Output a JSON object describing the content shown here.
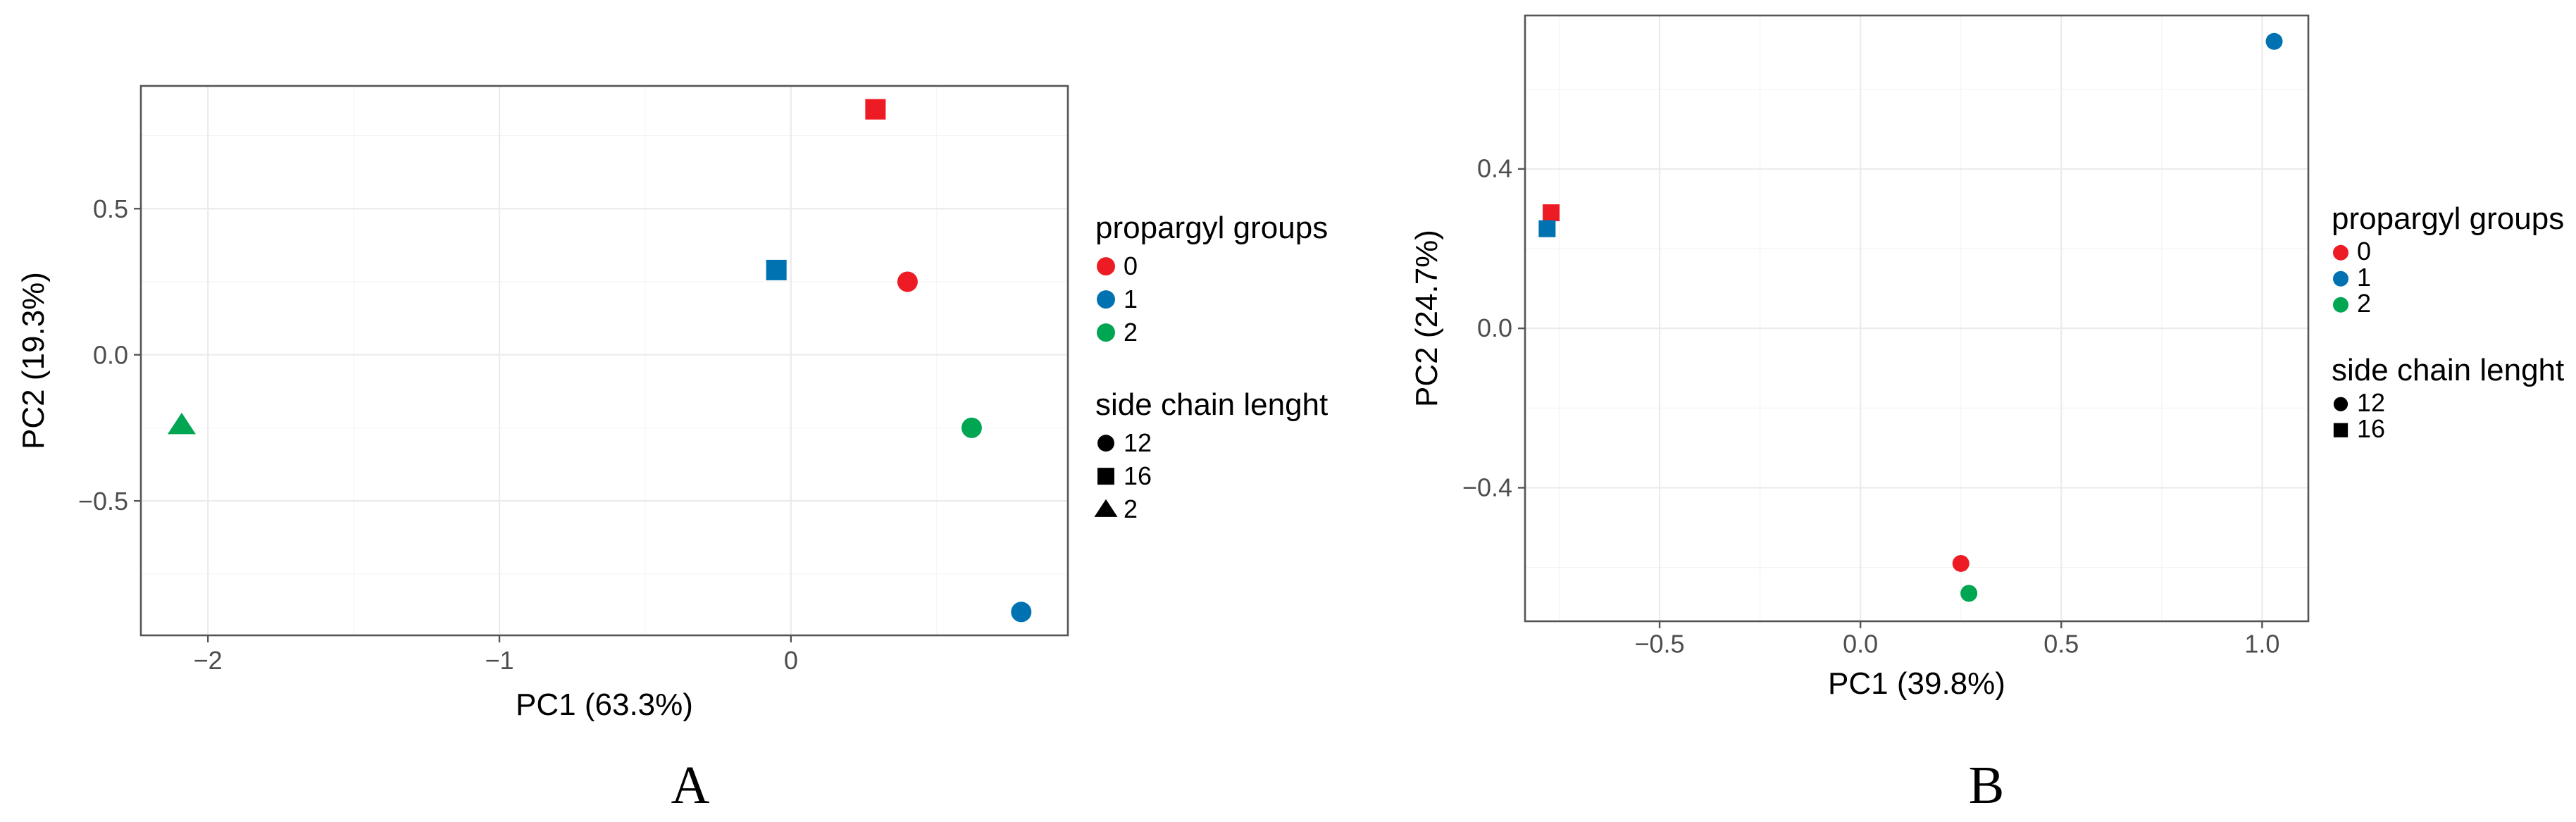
{
  "chart_data": [
    {
      "panel": "A",
      "type": "scatter",
      "title": "",
      "xlabel": "PC1 (63.3%)",
      "ylabel": "PC2 (19.3%)",
      "xlim": [
        -2.23,
        0.95
      ],
      "ylim": [
        -0.96,
        0.92
      ],
      "xticks": [
        -2,
        -1,
        0
      ],
      "yticks": [
        -0.5,
        0.0,
        0.5
      ],
      "xtick_labels": [
        "−2",
        "−1",
        "0"
      ],
      "ytick_labels": [
        "−0.5",
        "0.0",
        "0.5"
      ],
      "grid": true,
      "legend_position": "right",
      "legend": {
        "color_title": "propargyl groups",
        "color_entries": [
          {
            "label": "0",
            "color": "#ed1c24"
          },
          {
            "label": "1",
            "color": "#0072b2"
          },
          {
            "label": "2",
            "color": "#00a651"
          }
        ],
        "shape_title": "side chain lenght",
        "shape_entries": [
          {
            "label": "12",
            "shape": "circle"
          },
          {
            "label": "16",
            "shape": "square"
          },
          {
            "label": "2",
            "shape": "triangle"
          }
        ]
      },
      "points": [
        {
          "x": 0.29,
          "y": 0.84,
          "group": "0",
          "chain": "16"
        },
        {
          "x": -0.05,
          "y": 0.29,
          "group": "1",
          "chain": "16"
        },
        {
          "x": 0.4,
          "y": 0.25,
          "group": "0",
          "chain": "12"
        },
        {
          "x": 0.62,
          "y": -0.25,
          "group": "2",
          "chain": "12"
        },
        {
          "x": -2.09,
          "y": -0.24,
          "group": "2",
          "chain": "2"
        },
        {
          "x": 0.79,
          "y": -0.88,
          "group": "1",
          "chain": "12"
        }
      ]
    },
    {
      "panel": "B",
      "type": "scatter",
      "title": "",
      "xlabel": "PC1 (39.8%)",
      "ylabel": "PC2 (24.7%)",
      "xlim": [
        -0.835,
        1.115
      ],
      "ylim": [
        -0.735,
        0.785
      ],
      "xticks": [
        -0.5,
        0.0,
        0.5,
        1.0
      ],
      "yticks": [
        -0.4,
        0.0,
        0.4
      ],
      "xtick_labels": [
        "−0.5",
        "0.0",
        "0.5",
        "1.0"
      ],
      "ytick_labels": [
        "−0.4",
        "0.0",
        "0.4"
      ],
      "grid": true,
      "legend_position": "right",
      "legend": {
        "color_title": "propargyl groups",
        "color_entries": [
          {
            "label": "0",
            "color": "#ed1c24"
          },
          {
            "label": "1",
            "color": "#0072b2"
          },
          {
            "label": "2",
            "color": "#00a651"
          }
        ],
        "shape_title": "side chain lenght",
        "shape_entries": [
          {
            "label": "12",
            "shape": "circle"
          },
          {
            "label": "16",
            "shape": "square"
          }
        ]
      },
      "points": [
        {
          "x": 1.03,
          "y": 0.72,
          "group": "1",
          "chain": "12"
        },
        {
          "x": -0.77,
          "y": 0.29,
          "group": "0",
          "chain": "16"
        },
        {
          "x": -0.78,
          "y": 0.25,
          "group": "1",
          "chain": "16"
        },
        {
          "x": 0.25,
          "y": -0.59,
          "group": "0",
          "chain": "12"
        },
        {
          "x": 0.27,
          "y": -0.665,
          "group": "2",
          "chain": "12"
        }
      ]
    }
  ]
}
